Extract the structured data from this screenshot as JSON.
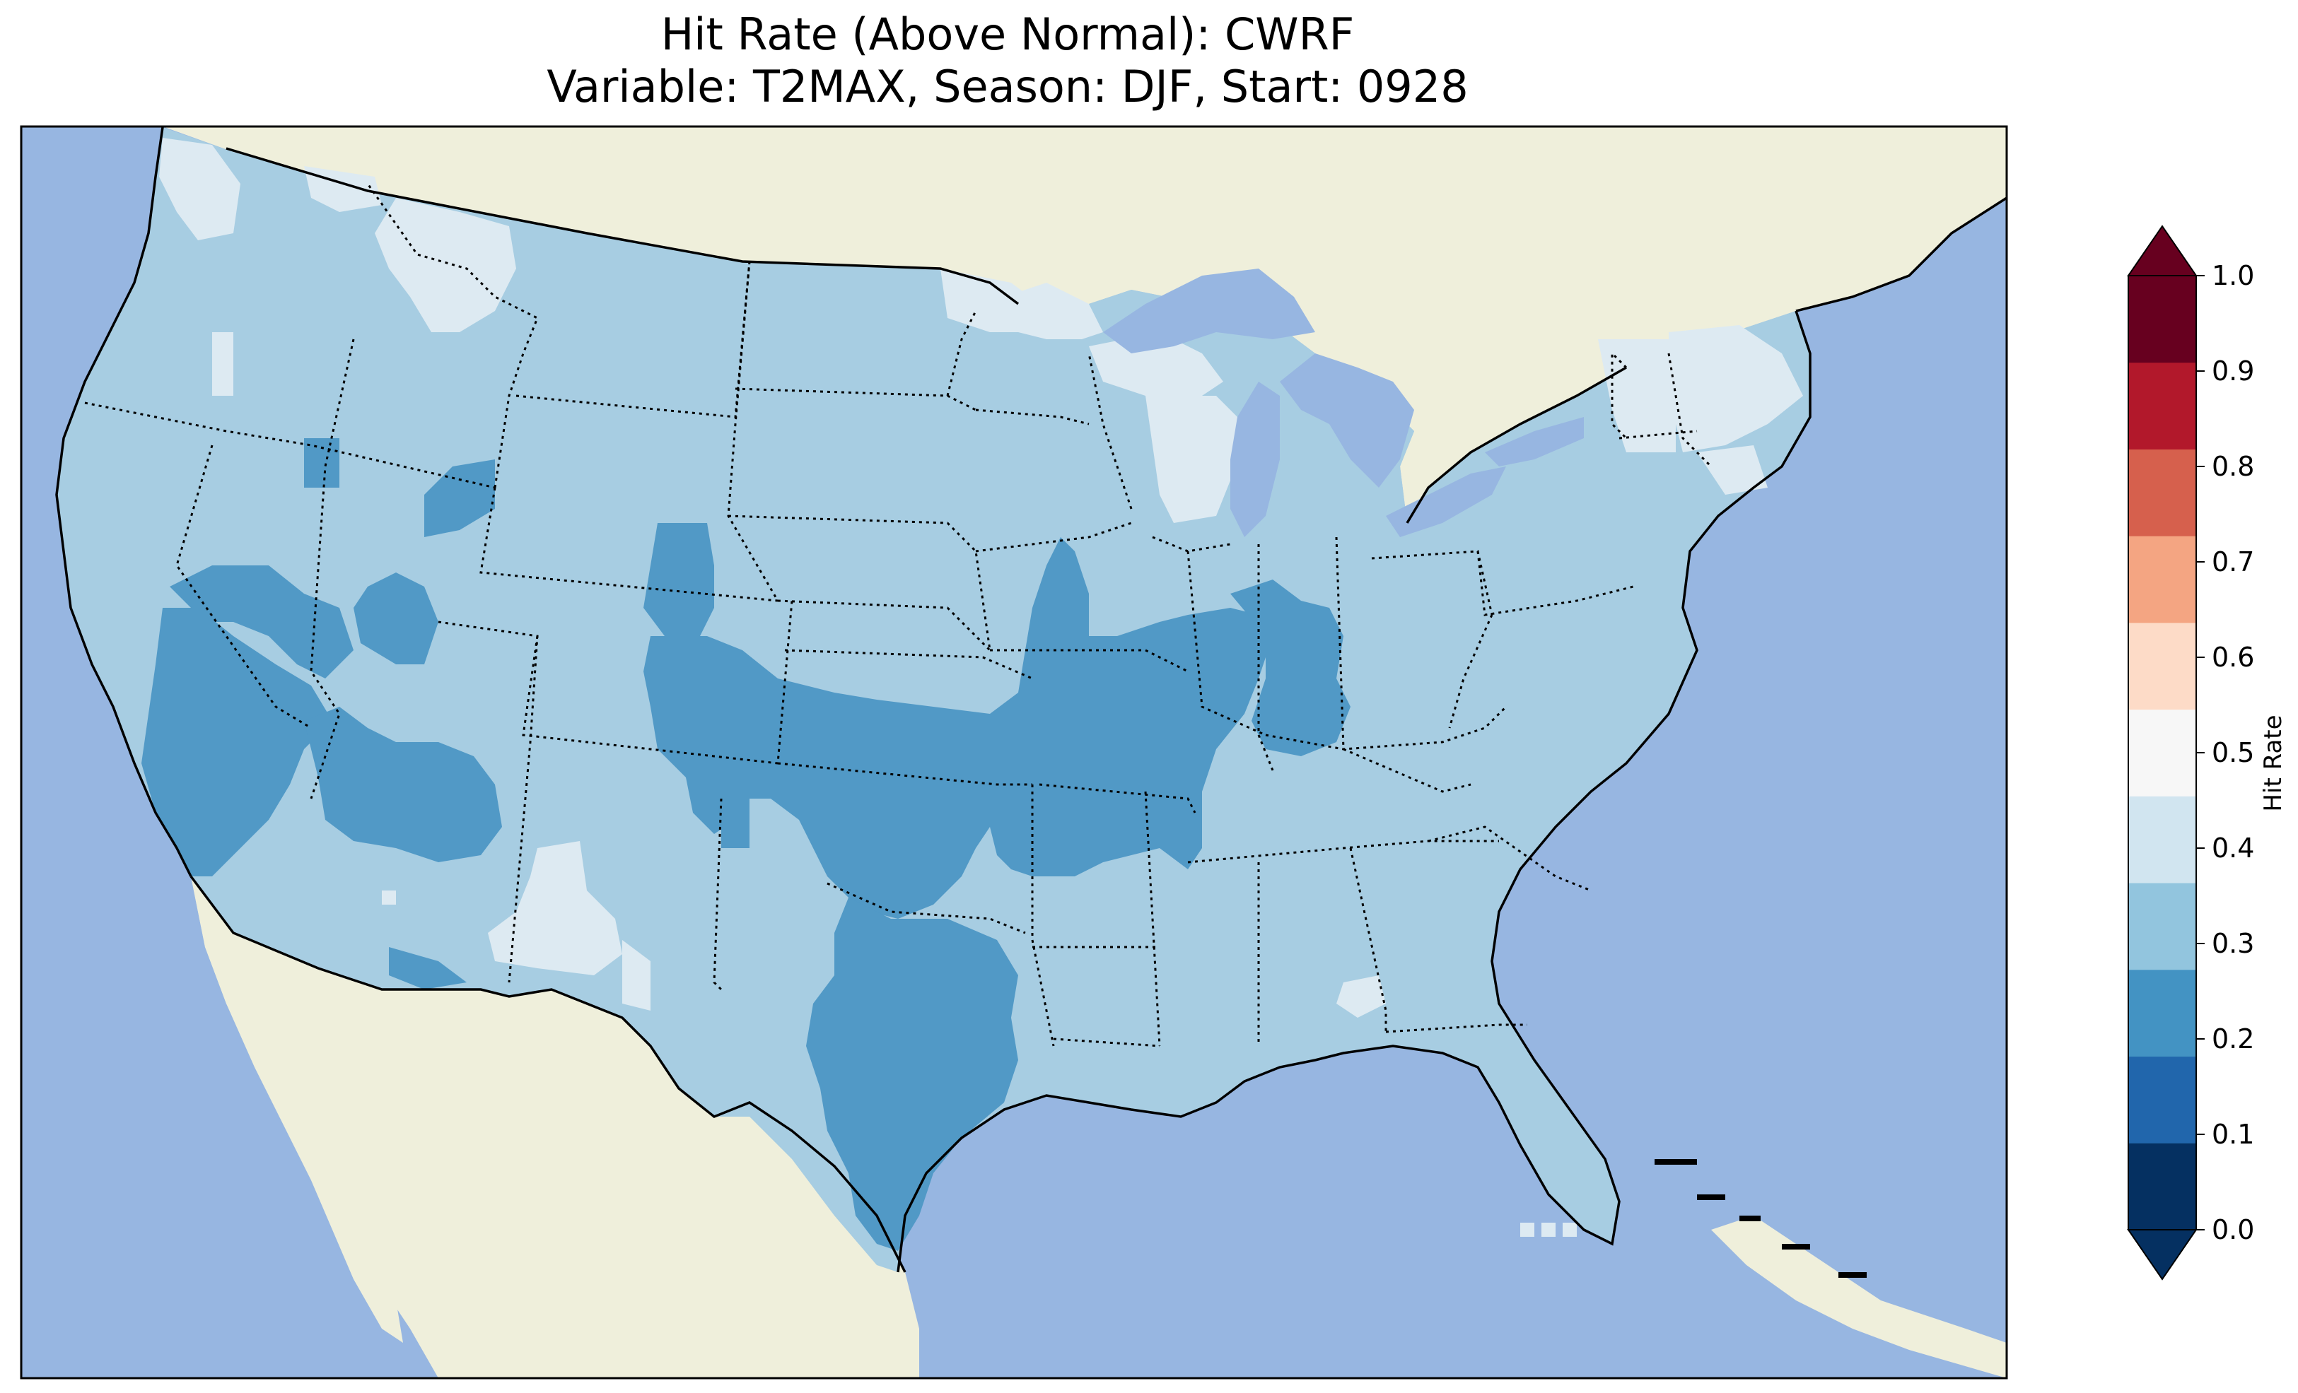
{
  "title": {
    "line1": "Hit Rate (Above Normal): CWRF",
    "line2": "Variable: T2MAX, Season: DJF, Start: 0928"
  },
  "map": {
    "region": "Continental United States",
    "ocean_color": "#97b6e1",
    "land_color": "#efefdb",
    "border_color": "#000000"
  },
  "colorbar": {
    "label": "Hit Rate",
    "ticks": [
      "0.0",
      "0.1",
      "0.2",
      "0.3",
      "0.4",
      "0.5",
      "0.6",
      "0.7",
      "0.8",
      "0.9",
      "1.0"
    ],
    "colors": [
      "#053061",
      "#2166ac",
      "#4393c3",
      "#92c5de",
      "#d1e5f0",
      "#f7f7f7",
      "#fddbc7",
      "#f4a582",
      "#d6604d",
      "#b2182b",
      "#67001f"
    ],
    "under_color": "#053061",
    "over_color": "#67001f"
  },
  "legend_bins": [
    {
      "range": "0.2-0.3",
      "color": "#5199c6"
    },
    {
      "range": "0.3-0.4",
      "color": "#a7cde2"
    },
    {
      "range": "0.4-0.5",
      "color": "#ddeaf2"
    }
  ]
}
